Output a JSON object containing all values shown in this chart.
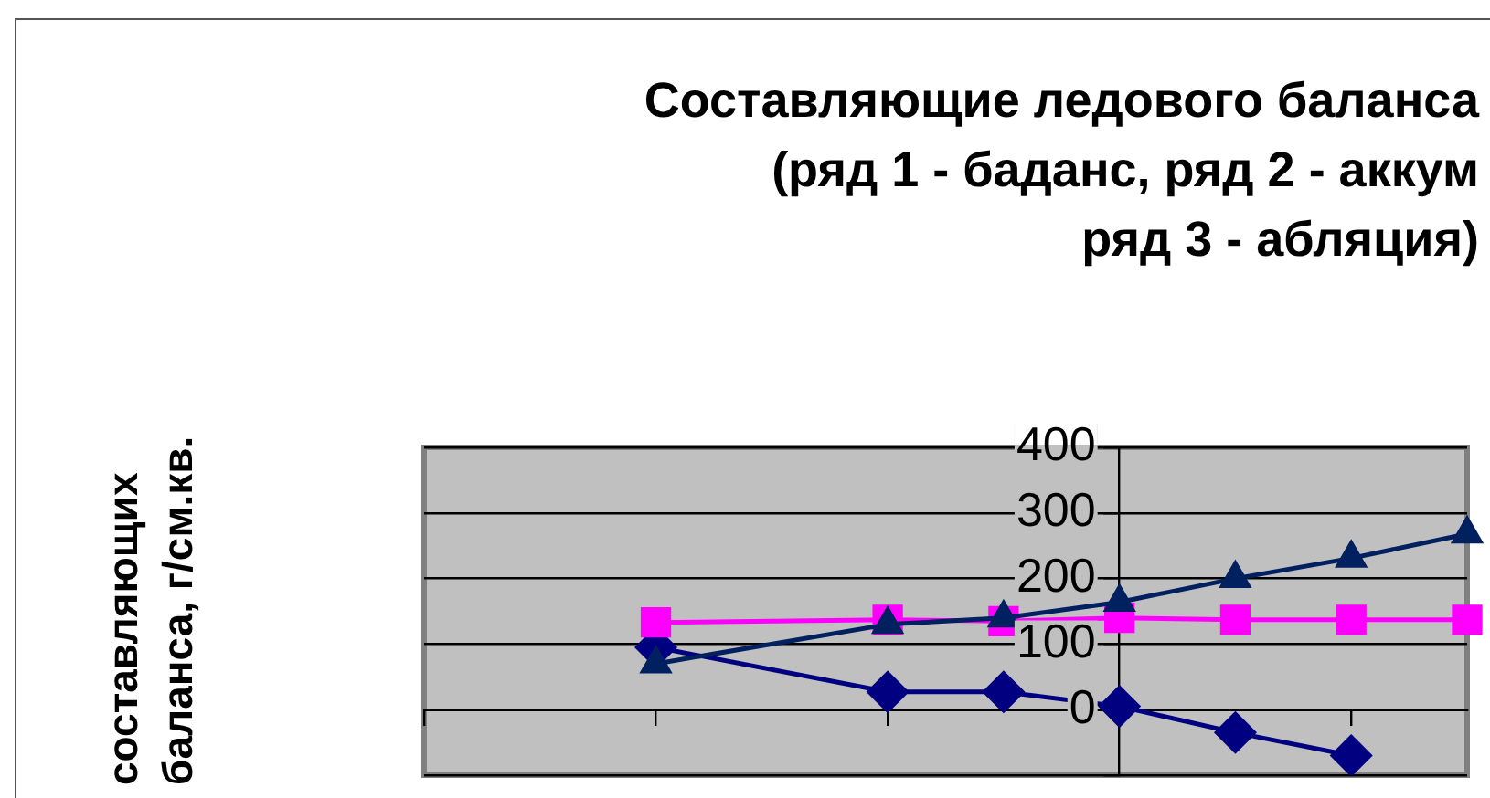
{
  "chart_data": {
    "type": "line",
    "title": "Составляющие ледового баланса\n(ряд 1 - баданс, ряд 2 - аккум\nряд 3 - абляция)",
    "annotations": [
      "составляющих\nбаланса, г/см.кв."
    ],
    "categories": [
      null,
      null,
      null,
      null,
      null,
      null,
      null,
      null,
      null,
      null
    ],
    "series": [
      {
        "color": "#000080",
        "marker": "diamond",
        "values": [
          null,
          null,
          95,
          null,
          27,
          27,
          5,
          -35,
          -70,
          null
        ]
      },
      {
        "color": "#ff00ff",
        "marker": "square",
        "values": [
          null,
          null,
          133,
          null,
          137,
          135,
          140,
          137,
          137,
          137
        ]
      },
      {
        "color": "#002060",
        "marker": "triangle",
        "values": [
          null,
          null,
          70,
          null,
          130,
          140,
          164,
          200,
          231,
          268
        ]
      }
    ],
    "ylim": [
      -100,
      400
    ],
    "yticks": [
      {
        "value": -100,
        "label": null
      },
      0,
      100,
      200,
      300,
      400
    ],
    "grid": "y",
    "tick_labels": "y",
    "legend": false
  }
}
